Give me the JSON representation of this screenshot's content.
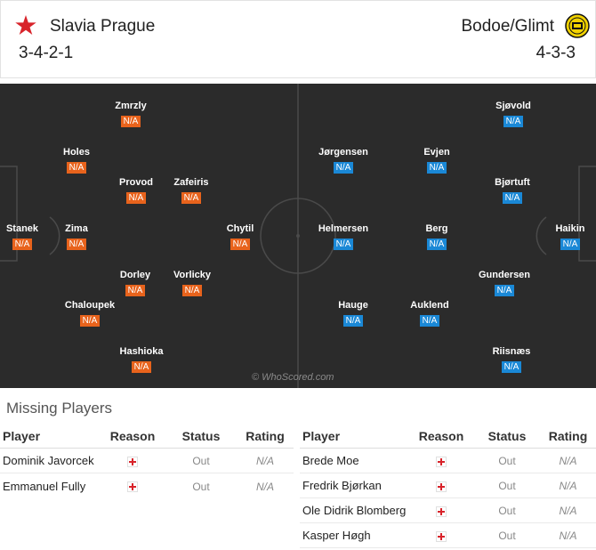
{
  "header": {
    "home": {
      "name": "Slavia Prague",
      "formation": "3-4-2-1",
      "logo": "red-star-icon"
    },
    "away": {
      "name": "Bodoe/Glimt",
      "formation": "4-3-3",
      "logo": "bodo-glimt-crest-icon"
    }
  },
  "pitch": {
    "watermark": "© WhoScored.com",
    "home_players": [
      {
        "name": "Stanek",
        "rating": "N/A"
      },
      {
        "name": "Holes",
        "rating": "N/A"
      },
      {
        "name": "Zima",
        "rating": "N/A"
      },
      {
        "name": "Chaloupek",
        "rating": "N/A"
      },
      {
        "name": "Zmrzly",
        "rating": "N/A"
      },
      {
        "name": "Provod",
        "rating": "N/A"
      },
      {
        "name": "Dorley",
        "rating": "N/A"
      },
      {
        "name": "Hashioka",
        "rating": "N/A"
      },
      {
        "name": "Zafeiris",
        "rating": "N/A"
      },
      {
        "name": "Vorlicky",
        "rating": "N/A"
      },
      {
        "name": "Chytil",
        "rating": "N/A"
      }
    ],
    "away_players": [
      {
        "name": "Haikin",
        "rating": "N/A"
      },
      {
        "name": "Sjøvold",
        "rating": "N/A"
      },
      {
        "name": "Bjørtuft",
        "rating": "N/A"
      },
      {
        "name": "Gundersen",
        "rating": "N/A"
      },
      {
        "name": "Riisnæs",
        "rating": "N/A"
      },
      {
        "name": "Evjen",
        "rating": "N/A"
      },
      {
        "name": "Berg",
        "rating": "N/A"
      },
      {
        "name": "Auklend",
        "rating": "N/A"
      },
      {
        "name": "Jørgensen",
        "rating": "N/A"
      },
      {
        "name": "Helmersen",
        "rating": "N/A"
      },
      {
        "name": "Hauge",
        "rating": "N/A"
      }
    ]
  },
  "missing": {
    "title": "Missing Players",
    "headers": {
      "player": "Player",
      "reason": "Reason",
      "status": "Status",
      "rating": "Rating"
    },
    "home": [
      {
        "player": "Dominik Javorcek",
        "reason": "injury-cross-icon",
        "status": "Out",
        "rating": "N/A"
      },
      {
        "player": "Emmanuel Fully",
        "reason": "injury-cross-icon",
        "status": "Out",
        "rating": "N/A"
      }
    ],
    "away": [
      {
        "player": "Brede Moe",
        "reason": "injury-cross-icon",
        "status": "Out",
        "rating": "N/A"
      },
      {
        "player": "Fredrik Bjørkan",
        "reason": "injury-cross-icon",
        "status": "Out",
        "rating": "N/A"
      },
      {
        "player": "Ole Didrik Blomberg",
        "reason": "injury-cross-icon",
        "status": "Out",
        "rating": "N/A"
      },
      {
        "player": "Kasper Høgh",
        "reason": "injury-cross-icon",
        "status": "Out",
        "rating": "N/A"
      }
    ]
  },
  "colors": {
    "home_badge": "#e8631c",
    "away_badge": "#1a88d6",
    "pitch": "#2b2b2b",
    "injury": "#d8232a"
  }
}
